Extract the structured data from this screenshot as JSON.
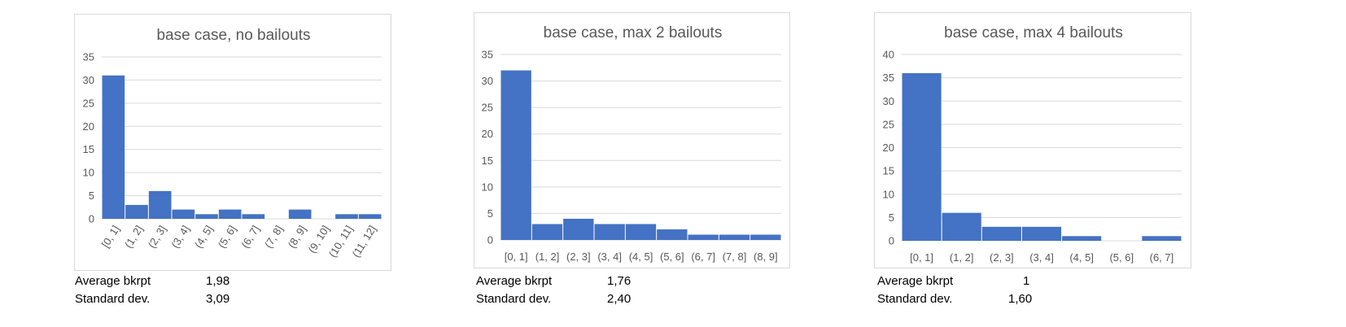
{
  "colors": {
    "bar": "#4472c4",
    "grid": "#d9d9d9",
    "text": "#595959",
    "title": "#595959"
  },
  "chart_data": [
    {
      "type": "bar",
      "title": "base case, no bailouts",
      "categories": [
        "[0, 1]",
        "(1, 2]",
        "(2, 3]",
        "(3, 4]",
        "(4, 5]",
        "(5, 6]",
        "(6, 7]",
        "(7, 8]",
        "(8, 9]",
        "(9, 10]",
        "(10, 11]",
        "(11, 12]"
      ],
      "values": [
        31,
        3,
        6,
        2,
        1,
        2,
        1,
        0,
        2,
        0,
        1,
        1
      ],
      "ylim": [
        0,
        35
      ],
      "yticks": [
        0,
        5,
        10,
        15,
        20,
        25,
        30,
        35
      ],
      "xlabel": "",
      "ylabel": "",
      "grid": true,
      "rotated_x_labels": true
    },
    {
      "type": "bar",
      "title": "base case, max 2 bailouts",
      "categories": [
        "[0, 1]",
        "(1, 2]",
        "(2, 3]",
        "(3, 4]",
        "(4, 5]",
        "(5, 6]",
        "(6, 7]",
        "(7, 8]",
        "(8, 9]"
      ],
      "values": [
        32,
        3,
        4,
        3,
        3,
        2,
        1,
        1,
        1
      ],
      "ylim": [
        0,
        35
      ],
      "yticks": [
        0,
        5,
        10,
        15,
        20,
        25,
        30,
        35
      ],
      "xlabel": "",
      "ylabel": "",
      "grid": true,
      "rotated_x_labels": false
    },
    {
      "type": "bar",
      "title": "base case, max 4 bailouts",
      "categories": [
        "[0, 1]",
        "(1, 2]",
        "(2, 3]",
        "(3, 4]",
        "(4, 5]",
        "(5, 6]",
        "(6, 7]"
      ],
      "values": [
        36,
        6,
        3,
        3,
        1,
        0,
        1
      ],
      "ylim": [
        0,
        40
      ],
      "yticks": [
        0,
        5,
        10,
        15,
        20,
        25,
        30,
        35,
        40
      ],
      "xlabel": "",
      "ylabel": "",
      "grid": true,
      "rotated_x_labels": false
    }
  ],
  "stats": [
    {
      "avg_label": "Average bkrpt",
      "avg_value": "1,98",
      "sd_label": "Standard dev.",
      "sd_value": "3,09"
    },
    {
      "avg_label": "Average bkrpt",
      "avg_value": "1,76",
      "sd_label": "Standard dev.",
      "sd_value": "2,40"
    },
    {
      "avg_label": "Average bkrpt",
      "avg_value": "1",
      "sd_label": "Standard dev.",
      "sd_value": "1,60"
    }
  ]
}
